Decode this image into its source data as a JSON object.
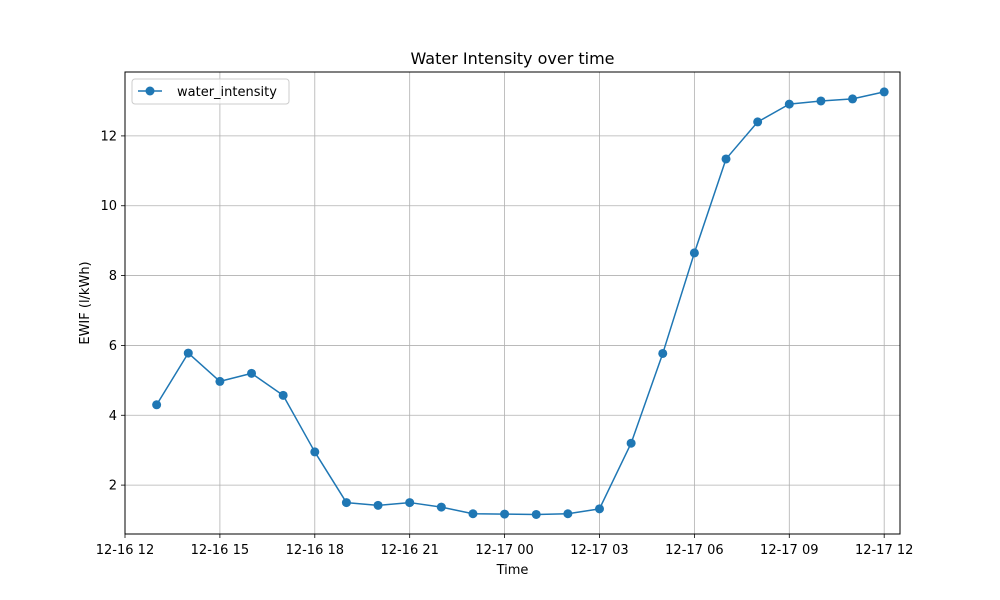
{
  "chart_data": {
    "type": "line",
    "title": "Water Intensity over time",
    "xlabel": "Time",
    "ylabel": "EWIF (l/kWh)",
    "grid": true,
    "legend_position": "top-left",
    "series": [
      {
        "name": "water_intensity",
        "color": "#1f77b4",
        "marker": "circle",
        "points": [
          {
            "x": "2024-12-16 13:00",
            "y": 4.3
          },
          {
            "x": "2024-12-16 14:00",
            "y": 5.78
          },
          {
            "x": "2024-12-16 15:00",
            "y": 4.97
          },
          {
            "x": "2024-12-16 16:00",
            "y": 5.2
          },
          {
            "x": "2024-12-16 17:00",
            "y": 4.57
          },
          {
            "x": "2024-12-16 18:00",
            "y": 2.95
          },
          {
            "x": "2024-12-16 19:00",
            "y": 1.5
          },
          {
            "x": "2024-12-16 20:00",
            "y": 1.42
          },
          {
            "x": "2024-12-16 21:00",
            "y": 1.5
          },
          {
            "x": "2024-12-16 22:00",
            "y": 1.37
          },
          {
            "x": "2024-12-16 23:00",
            "y": 1.18
          },
          {
            "x": "2024-12-17 00:00",
            "y": 1.17
          },
          {
            "x": "2024-12-17 01:00",
            "y": 1.16
          },
          {
            "x": "2024-12-17 02:00",
            "y": 1.18
          },
          {
            "x": "2024-12-17 03:00",
            "y": 1.32
          },
          {
            "x": "2024-12-17 04:00",
            "y": 3.2
          },
          {
            "x": "2024-12-17 05:00",
            "y": 5.77
          },
          {
            "x": "2024-12-17 06:00",
            "y": 8.65
          },
          {
            "x": "2024-12-17 07:00",
            "y": 11.34
          },
          {
            "x": "2024-12-17 08:00",
            "y": 12.4
          },
          {
            "x": "2024-12-17 09:00",
            "y": 12.91
          },
          {
            "x": "2024-12-17 10:00",
            "y": 13.0
          },
          {
            "x": "2024-12-17 11:00",
            "y": 13.06
          },
          {
            "x": "2024-12-17 12:00",
            "y": 13.26
          }
        ]
      }
    ],
    "xlim": [
      "2024-12-16 12:00",
      "2024-12-17 12:30"
    ],
    "ylim": [
      0.6,
      13.83
    ],
    "x_ticks": [
      {
        "x": "2024-12-16 12:00",
        "label": "12-16 12"
      },
      {
        "x": "2024-12-16 15:00",
        "label": "12-16 15"
      },
      {
        "x": "2024-12-16 18:00",
        "label": "12-16 18"
      },
      {
        "x": "2024-12-16 21:00",
        "label": "12-16 21"
      },
      {
        "x": "2024-12-17 00:00",
        "label": "12-17 00"
      },
      {
        "x": "2024-12-17 03:00",
        "label": "12-17 03"
      },
      {
        "x": "2024-12-17 06:00",
        "label": "12-17 06"
      },
      {
        "x": "2024-12-17 09:00",
        "label": "12-17 09"
      },
      {
        "x": "2024-12-17 12:00",
        "label": "12-17 12"
      }
    ],
    "y_ticks": [
      {
        "y": 2,
        "label": "2"
      },
      {
        "y": 4,
        "label": "4"
      },
      {
        "y": 6,
        "label": "6"
      },
      {
        "y": 8,
        "label": "8"
      },
      {
        "y": 10,
        "label": "10"
      },
      {
        "y": 12,
        "label": "12"
      }
    ]
  }
}
